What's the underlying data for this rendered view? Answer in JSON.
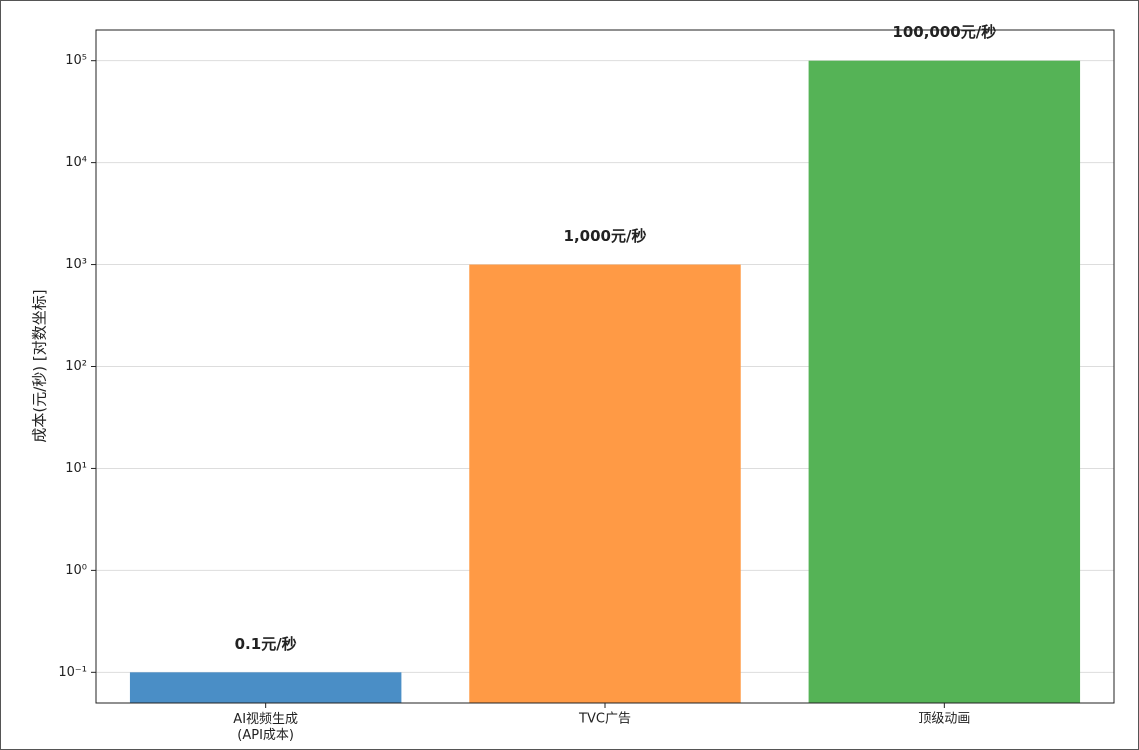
{
  "chart_data": {
    "type": "bar",
    "y_label": "成本(元/秒) [对数坐标]",
    "categories": [
      "AI视频生成\n(API成本)",
      "TVC广告",
      "顶级动画"
    ],
    "values": [
      0.1,
      1000,
      100000
    ],
    "value_labels": [
      "0.1元/秒",
      "1,000元/秒",
      "100,000元/秒"
    ],
    "colors": [
      "#4a8ec6",
      "#ff9a45",
      "#55b356"
    ],
    "log_scale": true,
    "ylim": [
      0.05,
      200000
    ],
    "yticks": [
      {
        "value": 0.1,
        "label": "10⁻¹"
      },
      {
        "value": 1,
        "label": "10⁰"
      },
      {
        "value": 10,
        "label": "10¹"
      },
      {
        "value": 100,
        "label": "10²"
      },
      {
        "value": 1000,
        "label": "10³"
      },
      {
        "value": 10000,
        "label": "10⁴"
      },
      {
        "value": 100000,
        "label": "10⁵"
      }
    ],
    "grid": true
  }
}
